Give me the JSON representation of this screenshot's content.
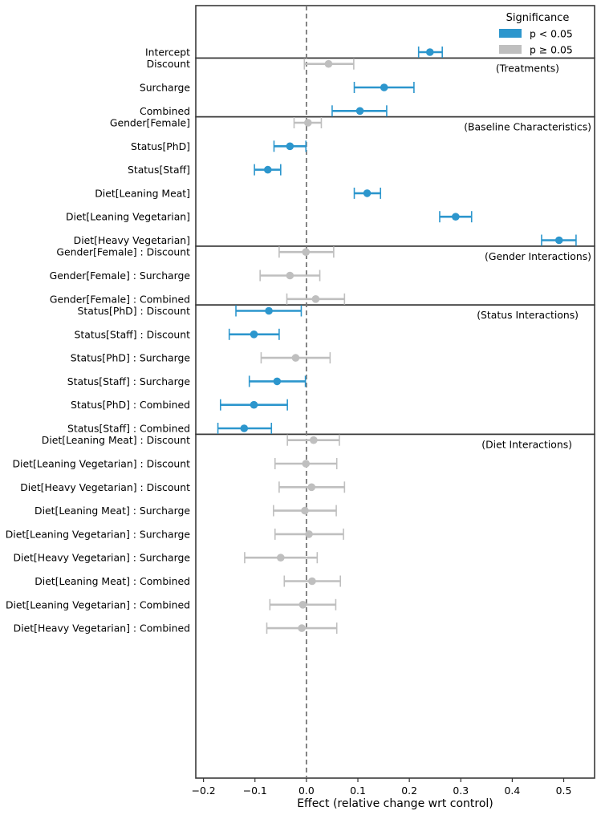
{
  "chart_data": {
    "type": "forest",
    "xlabel": "Effect (relative change wrt control)",
    "xlim": [
      -0.215,
      0.56
    ],
    "xticks": [
      -0.2,
      -0.1,
      0.0,
      0.1,
      0.2,
      0.3,
      0.4,
      0.5
    ],
    "xtick_labels": [
      "−0.2",
      "−0.1",
      "0.0",
      "0.1",
      "0.2",
      "0.3",
      "0.4",
      "0.5"
    ],
    "reference_line": 0,
    "legend": {
      "title": "Significance",
      "placement": "top-right",
      "entries": [
        {
          "label": "p < 0.05",
          "color": "#2c96cd"
        },
        {
          "label": "p ≥ 0.05",
          "color": "#bfbfbf"
        }
      ]
    },
    "colors": {
      "significant": "#2c96cd",
      "not_significant": "#bfbfbf"
    },
    "groups": [
      {
        "title": "",
        "rows": [
          {
            "label": "Intercept",
            "estimate": 0.24,
            "ci_low": 0.218,
            "ci_high": 0.264,
            "significant": true
          }
        ]
      },
      {
        "title": "(Treatments)",
        "rows": [
          {
            "label": "Discount",
            "estimate": 0.043,
            "ci_low": -0.004,
            "ci_high": 0.092,
            "significant": false
          },
          {
            "label": "Surcharge",
            "estimate": 0.151,
            "ci_low": 0.093,
            "ci_high": 0.209,
            "significant": true
          },
          {
            "label": "Combined",
            "estimate": 0.104,
            "ci_low": 0.05,
            "ci_high": 0.156,
            "significant": true
          }
        ]
      },
      {
        "title": "(Baseline Characteristics)",
        "rows": [
          {
            "label": "Gender[Female]",
            "estimate": 0.003,
            "ci_low": -0.024,
            "ci_high": 0.029,
            "significant": false
          },
          {
            "label": "Status[PhD]",
            "estimate": -0.032,
            "ci_low": -0.063,
            "ci_high": -0.001,
            "significant": true
          },
          {
            "label": "Status[Staff]",
            "estimate": -0.075,
            "ci_low": -0.101,
            "ci_high": -0.05,
            "significant": true
          },
          {
            "label": "Diet[Leaning Meat]",
            "estimate": 0.118,
            "ci_low": 0.093,
            "ci_high": 0.144,
            "significant": true
          },
          {
            "label": "Diet[Leaning Vegetarian]",
            "estimate": 0.29,
            "ci_low": 0.259,
            "ci_high": 0.321,
            "significant": true
          },
          {
            "label": "Diet[Heavy Vegetarian]",
            "estimate": 0.491,
            "ci_low": 0.457,
            "ci_high": 0.524,
            "significant": true
          }
        ]
      },
      {
        "title": "(Gender Interactions)",
        "rows": [
          {
            "label": "Gender[Female] : Discount",
            "estimate": -0.001,
            "ci_low": -0.053,
            "ci_high": 0.053,
            "significant": false
          },
          {
            "label": "Gender[Female] : Surcharge",
            "estimate": -0.032,
            "ci_low": -0.09,
            "ci_high": 0.026,
            "significant": false
          },
          {
            "label": "Gender[Female] : Combined",
            "estimate": 0.018,
            "ci_low": -0.038,
            "ci_high": 0.074,
            "significant": false
          }
        ]
      },
      {
        "title": "(Status Interactions)",
        "rows": [
          {
            "label": "Status[PhD] : Discount",
            "estimate": -0.073,
            "ci_low": -0.137,
            "ci_high": -0.01,
            "significant": true
          },
          {
            "label": "Status[Staff] : Discount",
            "estimate": -0.102,
            "ci_low": -0.15,
            "ci_high": -0.053,
            "significant": true
          },
          {
            "label": "Status[PhD] : Surcharge",
            "estimate": -0.021,
            "ci_low": -0.088,
            "ci_high": 0.046,
            "significant": false
          },
          {
            "label": "Status[Staff] : Surcharge",
            "estimate": -0.057,
            "ci_low": -0.111,
            "ci_high": -0.002,
            "significant": true
          },
          {
            "label": "Status[PhD] : Combined",
            "estimate": -0.102,
            "ci_low": -0.167,
            "ci_high": -0.037,
            "significant": true
          },
          {
            "label": "Status[Staff] : Combined",
            "estimate": -0.121,
            "ci_low": -0.172,
            "ci_high": -0.068,
            "significant": true
          }
        ]
      },
      {
        "title": "(Diet Interactions)",
        "rows": [
          {
            "label": "Diet[Leaning Meat] : Discount",
            "estimate": 0.014,
            "ci_low": -0.037,
            "ci_high": 0.064,
            "significant": false
          },
          {
            "label": "Diet[Leaning Vegetarian] : Discount",
            "estimate": -0.001,
            "ci_low": -0.061,
            "ci_high": 0.059,
            "significant": false
          },
          {
            "label": "Diet[Heavy Vegetarian] : Discount",
            "estimate": 0.01,
            "ci_low": -0.053,
            "ci_high": 0.074,
            "significant": false
          },
          {
            "label": "Diet[Leaning Meat] : Surcharge",
            "estimate": -0.003,
            "ci_low": -0.064,
            "ci_high": 0.058,
            "significant": false
          },
          {
            "label": "Diet[Leaning Vegetarian] : Surcharge",
            "estimate": 0.005,
            "ci_low": -0.061,
            "ci_high": 0.072,
            "significant": false
          },
          {
            "label": "Diet[Heavy Vegetarian] : Surcharge",
            "estimate": -0.05,
            "ci_low": -0.12,
            "ci_high": 0.021,
            "significant": false
          },
          {
            "label": "Diet[Leaning Meat] : Combined",
            "estimate": 0.011,
            "ci_low": -0.043,
            "ci_high": 0.066,
            "significant": false
          },
          {
            "label": "Diet[Leaning Vegetarian] : Combined",
            "estimate": -0.007,
            "ci_low": -0.071,
            "ci_high": 0.057,
            "significant": false
          },
          {
            "label": "Diet[Heavy Vegetarian] : Combined",
            "estimate": -0.009,
            "ci_low": -0.077,
            "ci_high": 0.059,
            "significant": false
          }
        ]
      }
    ]
  }
}
